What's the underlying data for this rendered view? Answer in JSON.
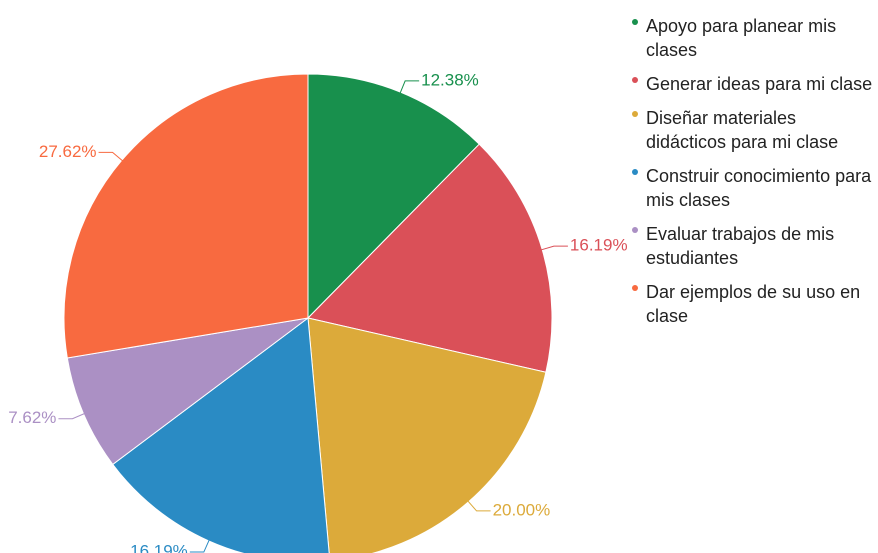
{
  "chart_data": {
    "type": "pie",
    "categories": [
      "Apoyo para planear mis clases",
      "Generar ideas para mi clase",
      "Diseñar materiales didácticos para mi clase",
      "Construir conocimiento para mis clases",
      "Evaluar trabajos de mis estudiantes",
      "Dar ejemplos de su uso en clase"
    ],
    "values": [
      12.38,
      16.19,
      20.0,
      16.19,
      7.62,
      27.62
    ],
    "value_labels": [
      "12.38%",
      "16.19%",
      "20.00%",
      "16.19%",
      "7.62%",
      "27.62%"
    ],
    "colors": [
      "#18904d",
      "#da5058",
      "#dcaa3a",
      "#2a8bc4",
      "#ab90c4",
      "#f86a40"
    ],
    "legend": "right"
  }
}
